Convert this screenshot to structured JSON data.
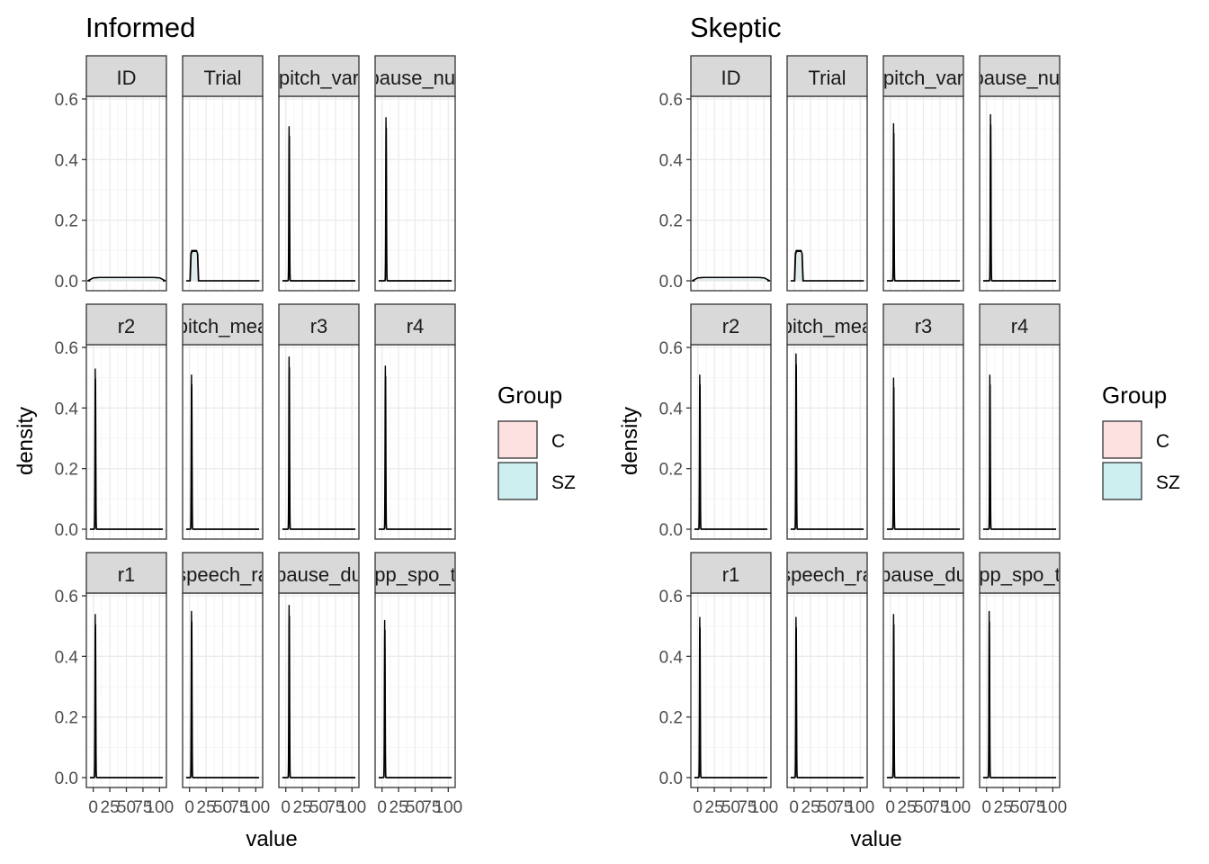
{
  "colors": {
    "C": "#fde0e0",
    "SZ": "#cdeff0",
    "strip_fill": "#d9d9d9",
    "strip_border": "#333333",
    "grid_major": "#ebebeb",
    "grid_minor": "#f5f5f5",
    "line": "#000000"
  },
  "chart_data": [
    {
      "type": "area",
      "title": "Informed",
      "xlabel": "value",
      "ylabel": "density",
      "ylim": [
        0,
        0.72
      ],
      "xlim": [
        -5,
        105
      ],
      "y_ticks": [
        "0.0",
        "0.2",
        "0.4",
        "0.6"
      ],
      "x_tick_labels": [
        "0",
        "25",
        "50",
        "75",
        "100"
      ],
      "grid": true,
      "legend": {
        "title": "Group",
        "position": "right",
        "entries": [
          {
            "label": "C",
            "color_key": "C"
          },
          {
            "label": "SZ",
            "color_key": "SZ"
          }
        ]
      },
      "facets": [
        {
          "label": "ID",
          "shape": "uniform",
          "start": 0,
          "end": 100,
          "peak": 0.011
        },
        {
          "label": "Trial",
          "shape": "uniform",
          "start": 2,
          "end": 12,
          "peak": 0.1
        },
        {
          "label": "pitch_var",
          "shape": "spike",
          "center": 5,
          "peak": 0.51
        },
        {
          "label": "pause_nur",
          "shape": "spike",
          "center": 6,
          "peak": 0.54
        },
        {
          "label": "r2",
          "shape": "spike",
          "center": 3,
          "peak": 0.53
        },
        {
          "label": "pitch_mea",
          "shape": "spike",
          "center": 3,
          "peak": 0.51
        },
        {
          "label": "r3",
          "shape": "spike",
          "center": 5,
          "peak": 0.57
        },
        {
          "label": "r4",
          "shape": "spike",
          "center": 5,
          "peak": 0.54
        },
        {
          "label": "r1",
          "shape": "spike",
          "center": 3,
          "peak": 0.54
        },
        {
          "label": "speech_ra",
          "shape": "spike",
          "center": 3,
          "peak": 0.55
        },
        {
          "label": "pause_du",
          "shape": "spike",
          "center": 5,
          "peak": 0.57
        },
        {
          "label": "pp_spo_t",
          "shape": "spike",
          "center": 4,
          "peak": 0.52
        }
      ]
    },
    {
      "type": "area",
      "title": "Skeptic",
      "xlabel": "value",
      "ylabel": "density",
      "ylim": [
        0,
        0.72
      ],
      "xlim": [
        -5,
        105
      ],
      "y_ticks": [
        "0.0",
        "0.2",
        "0.4",
        "0.6"
      ],
      "x_tick_labels": [
        "0",
        "25",
        "50",
        "75",
        "100"
      ],
      "grid": true,
      "legend": {
        "title": "Group",
        "position": "right",
        "entries": [
          {
            "label": "C",
            "color_key": "C"
          },
          {
            "label": "SZ",
            "color_key": "SZ"
          }
        ]
      },
      "facets": [
        {
          "label": "ID",
          "shape": "uniform",
          "start": 0,
          "end": 100,
          "peak": 0.011
        },
        {
          "label": "Trial",
          "shape": "uniform",
          "start": 2,
          "end": 12,
          "peak": 0.1
        },
        {
          "label": "pitch_var",
          "shape": "spike",
          "center": 5,
          "peak": 0.52
        },
        {
          "label": "pause_nur",
          "shape": "spike",
          "center": 6,
          "peak": 0.55
        },
        {
          "label": "r2",
          "shape": "spike",
          "center": 3,
          "peak": 0.51
        },
        {
          "label": "pitch_mea",
          "shape": "spike",
          "center": 3,
          "peak": 0.58
        },
        {
          "label": "r3",
          "shape": "spike",
          "center": 5,
          "peak": 0.5
        },
        {
          "label": "r4",
          "shape": "spike",
          "center": 5,
          "peak": 0.51
        },
        {
          "label": "r1",
          "shape": "spike",
          "center": 3,
          "peak": 0.53
        },
        {
          "label": "speech_ra",
          "shape": "spike",
          "center": 3,
          "peak": 0.53
        },
        {
          "label": "pause_du",
          "shape": "spike",
          "center": 5,
          "peak": 0.54
        },
        {
          "label": "pp_spo_t",
          "shape": "spike",
          "center": 4,
          "peak": 0.55
        }
      ]
    }
  ]
}
